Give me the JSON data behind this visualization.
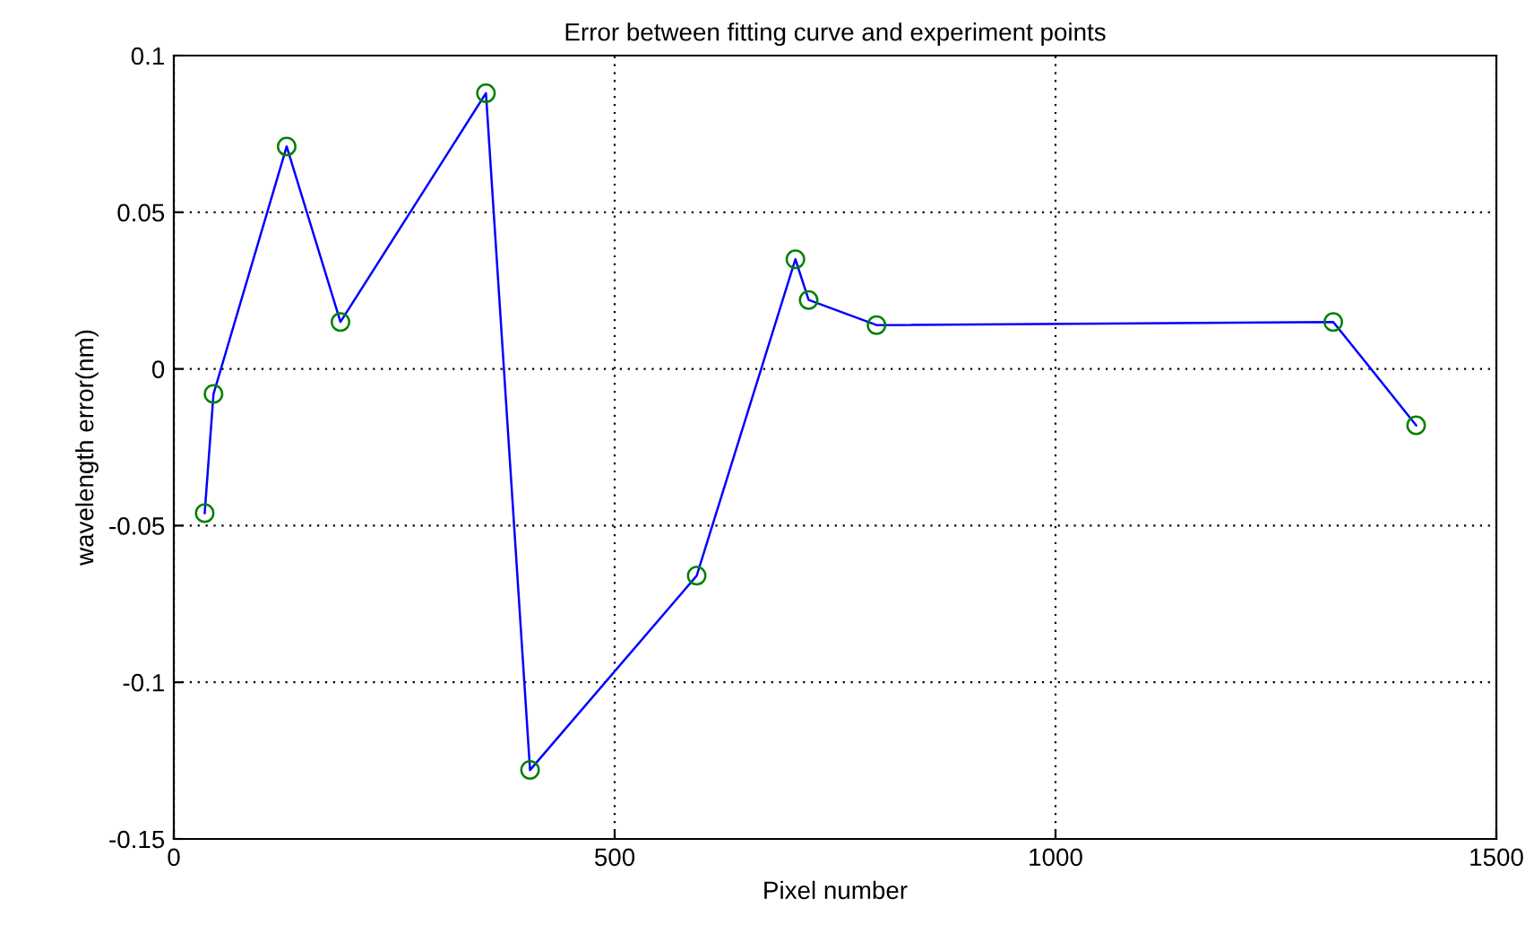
{
  "chart_data": {
    "type": "line",
    "title": "Error between fitting curve and experiment points",
    "xlabel": "Pixel number",
    "ylabel": "wavelength error(nm)",
    "x": [
      35,
      45,
      128,
      189,
      354,
      404,
      593,
      705,
      720,
      797,
      1315,
      1409
    ],
    "series": [
      {
        "color": "#0000ff",
        "colors": [
          "#008000",
          "#008000",
          "#008000",
          "#008000",
          "#008000",
          "#008000",
          "#008000",
          "#008000",
          "#008000",
          "#008000",
          "#008000",
          "#008000"
        ],
        "values": [
          -0.046,
          -0.008,
          0.071,
          0.015,
          0.088,
          -0.128,
          -0.066,
          0.035,
          0.022,
          0.014,
          0.015,
          -0.018
        ]
      }
    ],
    "xlim": [
      0,
      1500
    ],
    "xticks": [
      0,
      500,
      1000,
      1500
    ],
    "ylim": [
      -0.15,
      0.1
    ],
    "yticks": [
      -0.15,
      -0.1,
      -0.05,
      0,
      0.05,
      0.1
    ],
    "grid": true,
    "marker": "circle",
    "line_style": "solid"
  }
}
